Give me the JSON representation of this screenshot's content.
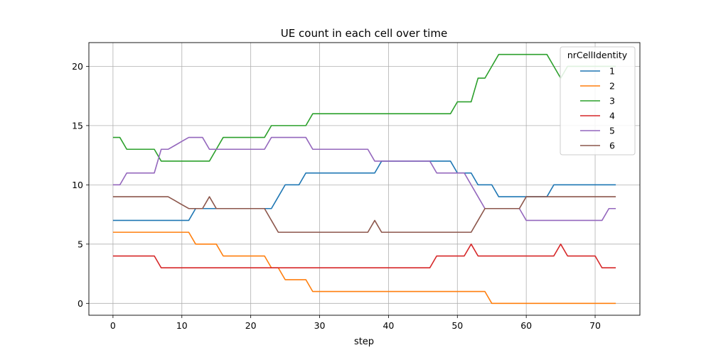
{
  "chart_data": {
    "type": "line",
    "title": "UE count in each cell over time",
    "xlabel": "step",
    "ylabel": "",
    "xlim": [
      -3.5,
      76.5
    ],
    "ylim": [
      -1,
      22
    ],
    "xticks": [
      0,
      10,
      20,
      30,
      40,
      50,
      60,
      70
    ],
    "yticks": [
      0,
      5,
      10,
      15,
      20
    ],
    "grid": true,
    "legend": {
      "title": "nrCellIdentity",
      "position": "top-right"
    },
    "series": [
      {
        "name": "1",
        "color": "#1f77b4",
        "values": [
          7,
          7,
          7,
          7,
          7,
          7,
          7,
          7,
          7,
          7,
          7,
          7,
          8,
          8,
          8,
          8,
          8,
          8,
          8,
          8,
          8,
          8,
          8,
          8,
          9,
          10,
          10,
          10,
          11,
          11,
          11,
          11,
          11,
          11,
          11,
          11,
          11,
          11,
          11,
          12,
          12,
          12,
          12,
          12,
          12,
          12,
          12,
          12,
          12,
          12,
          11,
          11,
          11,
          10,
          10,
          10,
          9,
          9,
          9,
          9,
          9,
          9,
          9,
          9,
          10,
          10,
          10,
          10,
          10,
          10,
          10,
          10,
          10,
          10
        ]
      },
      {
        "name": "2",
        "color": "#ff7f0e",
        "values": [
          6,
          6,
          6,
          6,
          6,
          6,
          6,
          6,
          6,
          6,
          6,
          6,
          5,
          5,
          5,
          5,
          4,
          4,
          4,
          4,
          4,
          4,
          4,
          3,
          3,
          2,
          2,
          2,
          2,
          1,
          1,
          1,
          1,
          1,
          1,
          1,
          1,
          1,
          1,
          1,
          1,
          1,
          1,
          1,
          1,
          1,
          1,
          1,
          1,
          1,
          1,
          1,
          1,
          1,
          1,
          0,
          0,
          0,
          0,
          0,
          0,
          0,
          0,
          0,
          0,
          0,
          0,
          0,
          0,
          0,
          0,
          0,
          0,
          0
        ]
      },
      {
        "name": "3",
        "color": "#2ca02c",
        "values": [
          14,
          14,
          13,
          13,
          13,
          13,
          13,
          12,
          12,
          12,
          12,
          12,
          12,
          12,
          12,
          13,
          14,
          14,
          14,
          14,
          14,
          14,
          14,
          15,
          15,
          15,
          15,
          15,
          15,
          16,
          16,
          16,
          16,
          16,
          16,
          16,
          16,
          16,
          16,
          16,
          16,
          16,
          16,
          16,
          16,
          16,
          16,
          16,
          16,
          16,
          17,
          17,
          17,
          19,
          19,
          20,
          21,
          21,
          21,
          21,
          21,
          21,
          21,
          21,
          20,
          19,
          20,
          20,
          20,
          20,
          20,
          20,
          20,
          20
        ]
      },
      {
        "name": "4",
        "color": "#d62728",
        "values": [
          4,
          4,
          4,
          4,
          4,
          4,
          4,
          3,
          3,
          3,
          3,
          3,
          3,
          3,
          3,
          3,
          3,
          3,
          3,
          3,
          3,
          3,
          3,
          3,
          3,
          3,
          3,
          3,
          3,
          3,
          3,
          3,
          3,
          3,
          3,
          3,
          3,
          3,
          3,
          3,
          3,
          3,
          3,
          3,
          3,
          3,
          3,
          4,
          4,
          4,
          4,
          4,
          5,
          4,
          4,
          4,
          4,
          4,
          4,
          4,
          4,
          4,
          4,
          4,
          4,
          5,
          4,
          4,
          4,
          4,
          4,
          3,
          3,
          3
        ]
      },
      {
        "name": "5",
        "color": "#9467bd",
        "values": [
          10,
          10,
          11,
          11,
          11,
          11,
          11,
          13,
          13,
          13.33,
          13.67,
          14,
          14,
          14,
          13,
          13,
          13,
          13,
          13,
          13,
          13,
          13,
          13,
          14,
          14,
          14,
          14,
          14,
          14,
          13,
          13,
          13,
          13,
          13,
          13,
          13,
          13,
          13,
          12,
          12,
          12,
          12,
          12,
          12,
          12,
          12,
          12,
          11,
          11,
          11,
          11,
          11,
          10,
          9,
          8,
          8,
          8,
          8,
          8,
          8,
          7,
          7,
          7,
          7,
          7,
          7,
          7,
          7,
          7,
          7,
          7,
          7,
          8,
          8
        ]
      },
      {
        "name": "6",
        "color": "#8c564b",
        "values": [
          9,
          9,
          9,
          9,
          9,
          9,
          9,
          9,
          9,
          8.67,
          8.33,
          8,
          8,
          8,
          9,
          8,
          8,
          8,
          8,
          8,
          8,
          8,
          8,
          7,
          6,
          6,
          6,
          6,
          6,
          6,
          6,
          6,
          6,
          6,
          6,
          6,
          6,
          6,
          7,
          6,
          6,
          6,
          6,
          6,
          6,
          6,
          6,
          6,
          6,
          6,
          6,
          6,
          6,
          7,
          8,
          8,
          8,
          8,
          8,
          8,
          9,
          9,
          9,
          9,
          9,
          9,
          9,
          9,
          9,
          9,
          9,
          9,
          9,
          9
        ]
      }
    ]
  }
}
